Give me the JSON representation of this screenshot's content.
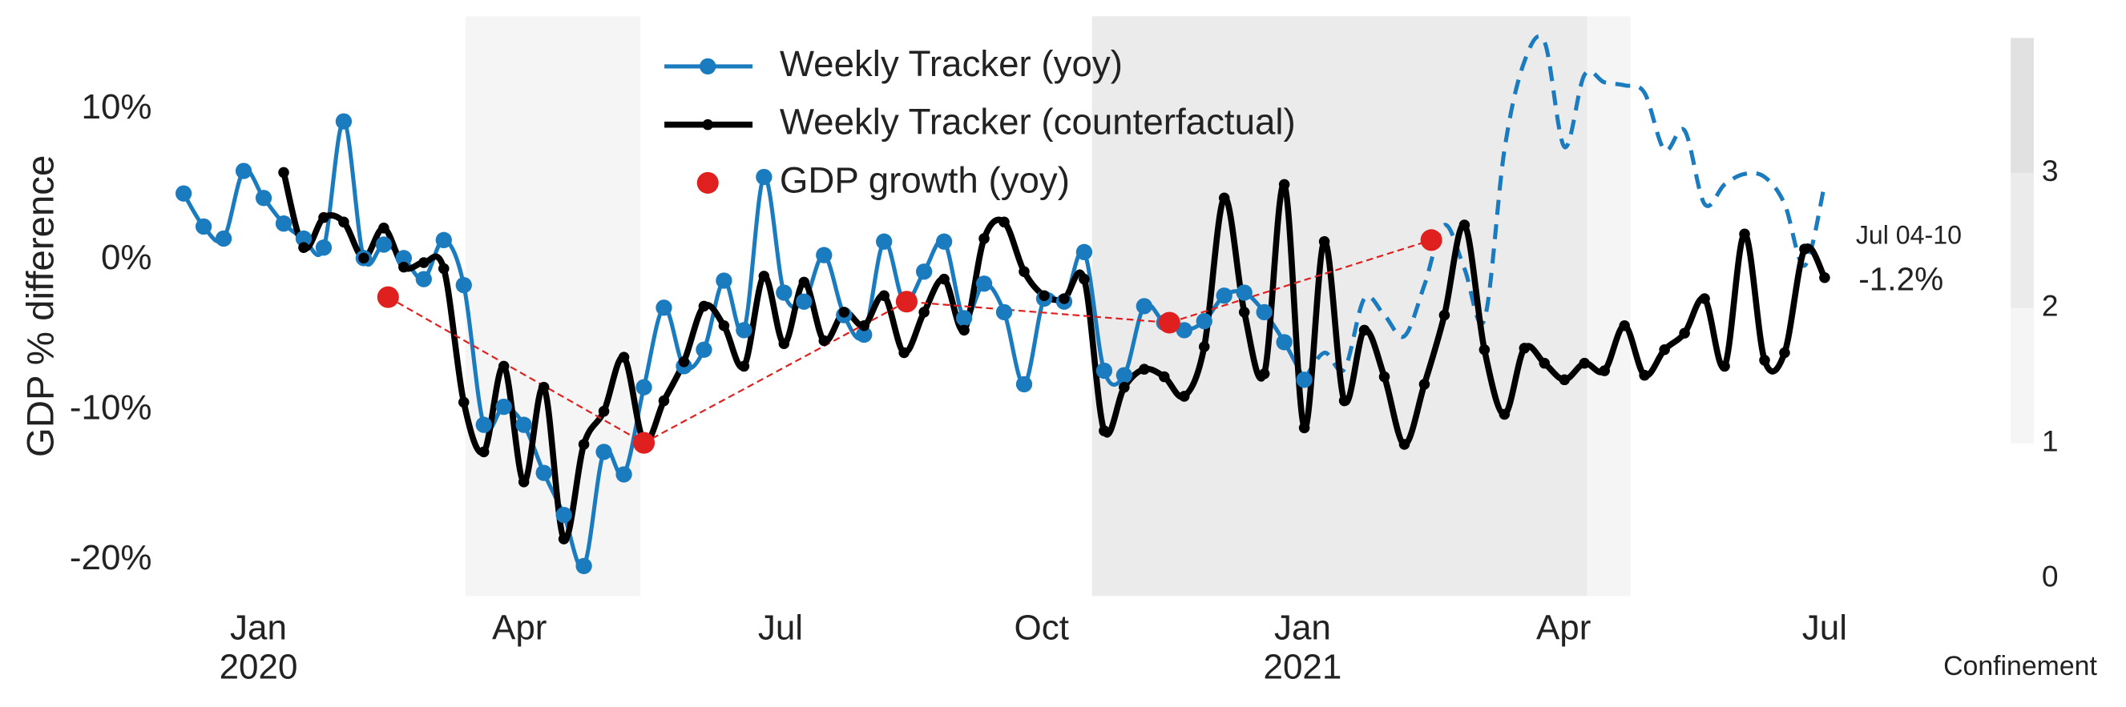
{
  "chart_data": {
    "type": "line",
    "y_label": "GDP % difference",
    "xlim": [
      -1.1,
      18.3
    ],
    "xticks": [
      {
        "value": 0,
        "label": "Jan"
      },
      {
        "value": 3,
        "label": "Apr"
      },
      {
        "value": 6,
        "label": "Jul"
      },
      {
        "value": 9,
        "label": "Oct"
      },
      {
        "value": 12,
        "label": "Jan"
      },
      {
        "value": 15,
        "label": "Apr"
      },
      {
        "value": 18,
        "label": "Jul"
      }
    ],
    "x_year_labels": [
      {
        "value": 0,
        "label": "2020"
      },
      {
        "value": 12,
        "label": "2021"
      }
    ],
    "ylim": [
      -22.4,
      16.2
    ],
    "yticks": [
      {
        "value": 10,
        "label": "10%"
      },
      {
        "value": 0,
        "label": "0%"
      },
      {
        "value": -10,
        "label": "-10%"
      },
      {
        "value": -20,
        "label": "-20%"
      }
    ],
    "grid": false,
    "legend": "upper center",
    "series": [
      {
        "name": "Weekly Tracker (yoy)",
        "color": "#1a7bbf",
        "line": "solid",
        "line_width": 3,
        "markers": true,
        "marker_radius": 6,
        "x": [
          -0.86,
          -0.63,
          -0.4,
          -0.17,
          0.06,
          0.29,
          0.52,
          0.75,
          0.98,
          1.21,
          1.44,
          1.67,
          1.9,
          2.13,
          2.36,
          2.59,
          2.82,
          3.05,
          3.28,
          3.51,
          3.74,
          3.97,
          4.2,
          4.43,
          4.66,
          4.89,
          5.12,
          5.35,
          5.58,
          5.81,
          6.04,
          6.27,
          6.5,
          6.73,
          6.96,
          7.19,
          7.42,
          7.65,
          7.88,
          8.11,
          8.34,
          8.57,
          8.8,
          9.03,
          9.26,
          9.49,
          9.72,
          9.95,
          10.18,
          10.41,
          10.64,
          10.87,
          11.1,
          11.33,
          11.56,
          11.79,
          12.02
        ],
        "values": [
          4.4,
          2.2,
          1.4,
          5.9,
          4.1,
          2.4,
          1.4,
          0.8,
          9.2,
          0.1,
          1.0,
          0.1,
          -1.3,
          1.3,
          -1.7,
          -11.0,
          -9.8,
          -11.0,
          -14.2,
          -17.0,
          -20.4,
          -12.8,
          -14.3,
          -8.5,
          -3.2,
          -7.1,
          -6.0,
          -1.4,
          -4.7,
          5.5,
          -2.2,
          -2.8,
          0.3,
          -3.7,
          -5.0,
          1.2,
          -2.8,
          -0.8,
          1.2,
          -3.9,
          -1.6,
          -3.5,
          -8.3,
          -2.6,
          -2.8,
          0.5,
          -7.4,
          -7.7,
          -3.1,
          -4.2,
          -4.7,
          -4.1,
          -2.4,
          -2.2,
          -3.5,
          -5.5,
          -8.0
        ]
      },
      {
        "color": "#1a7bbf",
        "line": "dashed",
        "line_width": 3,
        "markers": false,
        "x": [
          12.02,
          12.25,
          12.48,
          12.71,
          12.94,
          13.17,
          13.4,
          13.63,
          13.86,
          14.09,
          14.32,
          14.55,
          14.78,
          15.01,
          15.24,
          15.47,
          15.7,
          15.93,
          16.16,
          16.39,
          16.62,
          16.85,
          17.08,
          17.31,
          17.54,
          17.77,
          18.0
        ],
        "values": [
          -8.0,
          -6.2,
          -7.3,
          -2.6,
          -3.7,
          -5.1,
          -1.7,
          2.3,
          -0.6,
          -4.0,
          7.3,
          13.2,
          14.5,
          7.5,
          12.3,
          11.8,
          11.6,
          11.1,
          7.3,
          8.6,
          3.7,
          5.0,
          5.7,
          5.5,
          3.7,
          -0.4,
          5.0
        ]
      },
      {
        "name": "Weekly Tracker (counterfactual)",
        "color": "#000000",
        "line": "solid",
        "line_width": 4.5,
        "markers": true,
        "marker_radius": 4,
        "x": [
          0.29,
          0.52,
          0.75,
          0.98,
          1.21,
          1.44,
          1.67,
          1.9,
          2.13,
          2.36,
          2.59,
          2.82,
          3.05,
          3.28,
          3.51,
          3.74,
          3.97,
          4.2,
          4.43,
          4.66,
          4.89,
          5.12,
          5.35,
          5.58,
          5.81,
          6.04,
          6.27,
          6.5,
          6.73,
          6.96,
          7.19,
          7.42,
          7.65,
          7.88,
          8.11,
          8.34,
          8.57,
          8.8,
          9.03,
          9.26,
          9.49,
          9.72,
          9.95,
          10.18,
          10.41,
          10.64,
          10.87,
          11.1,
          11.33,
          11.56,
          11.79,
          12.02,
          12.25,
          12.48,
          12.71,
          12.94,
          13.17,
          13.4,
          13.63,
          13.86,
          14.09,
          14.32,
          14.55,
          14.78,
          15.01,
          15.24,
          15.47,
          15.7,
          15.93,
          16.16,
          16.39,
          16.62,
          16.85,
          17.08,
          17.31,
          17.54,
          17.77,
          18.0
        ],
        "values": [
          5.8,
          0.8,
          2.8,
          2.5,
          0.1,
          2.1,
          -0.5,
          -0.2,
          -0.6,
          -9.5,
          -12.8,
          -7.1,
          -14.8,
          -8.5,
          -18.6,
          -12.3,
          -10.1,
          -6.5,
          -12.1,
          -9.4,
          -6.8,
          -3.1,
          -4.4,
          -7.1,
          -1.1,
          -5.6,
          -1.5,
          -5.4,
          -3.5,
          -4.4,
          -2.4,
          -6.2,
          -3.5,
          -1.3,
          -4.7,
          1.4,
          2.5,
          -0.8,
          -2.4,
          -2.6,
          -1.3,
          -11.4,
          -8.5,
          -7.3,
          -7.8,
          -9.1,
          -5.8,
          4.1,
          -3.5,
          -7.6,
          5.0,
          -11.2,
          1.2,
          -9.4,
          -4.7,
          -7.8,
          -12.3,
          -8.3,
          -3.7,
          2.3,
          -6.0,
          -10.3,
          -5.9,
          -6.9,
          -8.0,
          -6.9,
          -7.4,
          -4.4,
          -7.7,
          -6.0,
          -4.9,
          -2.6,
          -7.1,
          1.7,
          -6.7,
          -6.2,
          0.7,
          -1.2
        ]
      },
      {
        "name": "GDP growth (yoy)",
        "color": "#e0201f",
        "line": "thin-dashed",
        "line_width": 1.3,
        "markers": true,
        "marker_radius": 8,
        "x": [
          1.49,
          4.43,
          7.45,
          10.47,
          13.48
        ],
        "values": [
          -2.5,
          -12.2,
          -2.8,
          -4.2,
          1.3
        ]
      }
    ],
    "annotation": {
      "period": "Jul 04-10",
      "value_label": "-1.2%"
    },
    "confinement_regions": [
      {
        "start": 2.38,
        "end": 4.39,
        "level": 1
      },
      {
        "start": 9.58,
        "end": 15.27,
        "level": 2
      },
      {
        "start": 15.27,
        "end": 15.77,
        "level": 1
      }
    ],
    "colorbar": {
      "label": "Confinement",
      "lim": [
        0,
        4
      ],
      "ticks": [
        0,
        1,
        2,
        3
      ],
      "segments": [
        {
          "from": 1,
          "to": 2,
          "color": "#f5f5f5"
        },
        {
          "from": 2,
          "to": 3,
          "color": "#ebebeb"
        },
        {
          "from": 3,
          "to": 4,
          "color": "#e1e1e1"
        }
      ]
    }
  }
}
